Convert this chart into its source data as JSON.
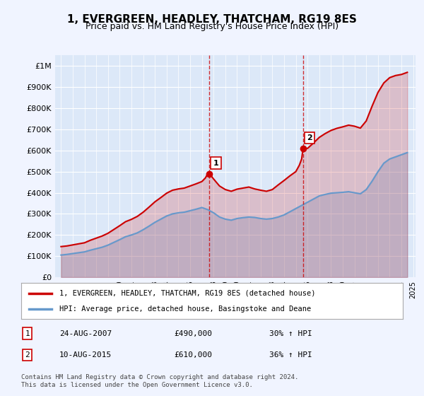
{
  "title": "1, EVERGREEN, HEADLEY, THATCHAM, RG19 8ES",
  "subtitle": "Price paid vs. HM Land Registry's House Price Index (HPI)",
  "bg_color": "#f0f4ff",
  "plot_bg_color": "#dce8f8",
  "red_line_color": "#cc0000",
  "blue_line_color": "#6699cc",
  "sale1_date": "24-AUG-2007",
  "sale1_price": 490000,
  "sale1_hpi": "30% ↑ HPI",
  "sale1_year": 2007.65,
  "sale2_date": "10-AUG-2015",
  "sale2_price": 610000,
  "sale2_hpi": "36% ↑ HPI",
  "sale2_year": 2015.62,
  "legend_label_red": "1, EVERGREEN, HEADLEY, THATCHAM, RG19 8ES (detached house)",
  "legend_label_blue": "HPI: Average price, detached house, Basingstoke and Deane",
  "footnote": "Contains HM Land Registry data © Crown copyright and database right 2024.\nThis data is licensed under the Open Government Licence v3.0.",
  "ylim": [
    0,
    1050000
  ],
  "yticks": [
    0,
    100000,
    200000,
    300000,
    400000,
    500000,
    600000,
    700000,
    800000,
    900000,
    1000000
  ],
  "ytick_labels": [
    "£0",
    "£100K",
    "£200K",
    "£300K",
    "£400K",
    "£500K",
    "£600K",
    "£700K",
    "£800K",
    "£900K",
    "£1M"
  ],
  "hpi_years": [
    1995,
    1995.5,
    1996,
    1996.5,
    1997,
    1997.5,
    1998,
    1998.5,
    1999,
    1999.5,
    2000,
    2000.5,
    2001,
    2001.5,
    2002,
    2002.5,
    2003,
    2003.5,
    2004,
    2004.5,
    2005,
    2005.5,
    2006,
    2006.5,
    2007,
    2007.5,
    2008,
    2008.5,
    2009,
    2009.5,
    2010,
    2010.5,
    2011,
    2011.5,
    2012,
    2012.5,
    2013,
    2013.5,
    2014,
    2014.5,
    2015,
    2015.5,
    2016,
    2016.5,
    2017,
    2017.5,
    2018,
    2018.5,
    2019,
    2019.5,
    2020,
    2020.5,
    2021,
    2021.5,
    2022,
    2022.5,
    2023,
    2023.5,
    2024,
    2024.5
  ],
  "hpi_values": [
    105000,
    108000,
    112000,
    116000,
    120000,
    128000,
    135000,
    142000,
    152000,
    165000,
    178000,
    192000,
    200000,
    210000,
    225000,
    242000,
    260000,
    275000,
    290000,
    300000,
    305000,
    308000,
    315000,
    322000,
    330000,
    320000,
    305000,
    285000,
    275000,
    270000,
    278000,
    282000,
    285000,
    283000,
    278000,
    275000,
    278000,
    285000,
    295000,
    310000,
    325000,
    340000,
    355000,
    370000,
    385000,
    392000,
    398000,
    400000,
    402000,
    405000,
    400000,
    395000,
    415000,
    455000,
    500000,
    540000,
    560000,
    570000,
    580000,
    590000
  ],
  "red_years": [
    1995,
    1995.5,
    1996,
    1996.5,
    1997,
    1997.5,
    1998,
    1998.5,
    1999,
    1999.5,
    2000,
    2000.5,
    2001,
    2001.5,
    2002,
    2002.5,
    2003,
    2003.5,
    2004,
    2004.5,
    2005,
    2005.5,
    2006,
    2006.5,
    2007,
    2007.3,
    2007.5,
    2007.65,
    2008,
    2008.5,
    2009,
    2009.5,
    2010,
    2010.5,
    2011,
    2011.5,
    2012,
    2012.5,
    2013,
    2013.5,
    2014,
    2014.5,
    2015,
    2015.3,
    2015.5,
    2015.62,
    2016,
    2016.5,
    2017,
    2017.5,
    2018,
    2018.5,
    2019,
    2019.5,
    2020,
    2020.5,
    2021,
    2021.5,
    2022,
    2022.5,
    2023,
    2023.5,
    2024,
    2024.5
  ],
  "red_values": [
    145000,
    148000,
    153000,
    158000,
    163000,
    175000,
    185000,
    195000,
    208000,
    226000,
    244000,
    263000,
    274000,
    288000,
    308000,
    332000,
    357000,
    377000,
    398000,
    412000,
    418000,
    422000,
    432000,
    442000,
    453000,
    470000,
    490000,
    490000,
    465000,
    432000,
    415000,
    407000,
    417000,
    422000,
    427000,
    418000,
    412000,
    407000,
    415000,
    437000,
    458000,
    480000,
    500000,
    530000,
    560000,
    610000,
    610000,
    635000,
    662000,
    680000,
    695000,
    705000,
    712000,
    720000,
    715000,
    706000,
    740000,
    810000,
    875000,
    920000,
    945000,
    955000,
    960000,
    970000
  ]
}
